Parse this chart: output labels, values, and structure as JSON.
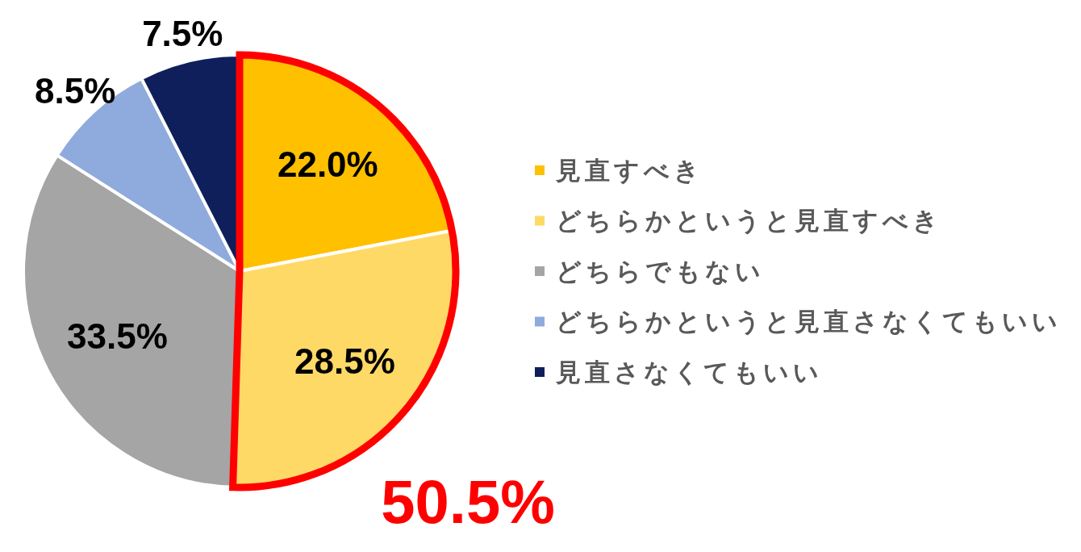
{
  "chart_data": {
    "type": "pie",
    "categories": [
      "見直すべき",
      "どちらかというと見直すべき",
      "どちらでもない",
      "どちらかというと見直さなくてもいい",
      "見直さなくてもいい"
    ],
    "values": [
      22.0,
      28.5,
      33.5,
      8.5,
      7.5
    ],
    "colors": [
      "#ffc000",
      "#ffd966",
      "#a5a5a5",
      "#8faadc",
      "#0e1f5b"
    ],
    "value_labels": [
      "22.0%",
      "28.5%",
      "33.5%",
      "8.5%",
      "7.5%"
    ],
    "legend": "right",
    "annotations": [
      "50.5%"
    ]
  }
}
